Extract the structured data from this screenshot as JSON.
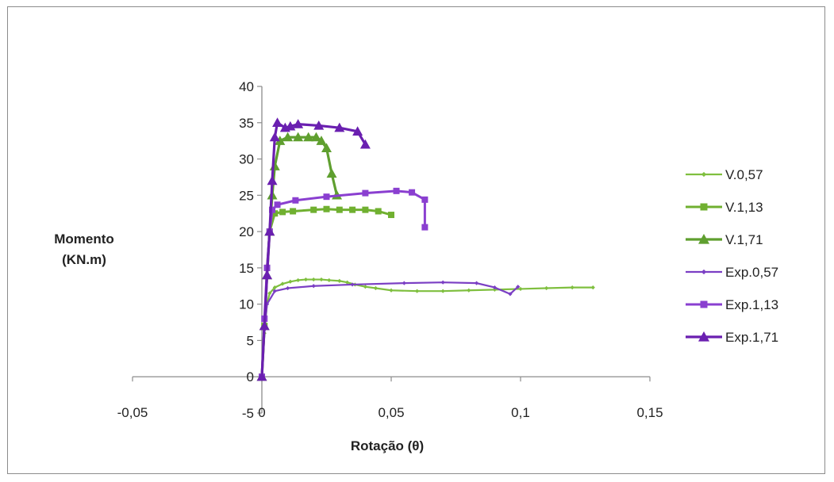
{
  "chart_data": {
    "type": "line",
    "title": "",
    "xlabel": "Rotação (θ)",
    "ylabel_lines": [
      "Momento",
      "(KN.m)"
    ],
    "xlim": [
      -0.05,
      0.15
    ],
    "ylim": [
      -5,
      40
    ],
    "x_ticks": [
      -0.05,
      0,
      0.05,
      0.1,
      0.15
    ],
    "x_tick_labels": [
      "-0,05",
      "0",
      "0,05",
      "0,1",
      "0,15"
    ],
    "y_ticks": [
      -5,
      0,
      5,
      10,
      15,
      20,
      25,
      30,
      35,
      40
    ],
    "y_tick_labels": [
      "-5",
      "0",
      "5",
      "10",
      "15",
      "20",
      "25",
      "30",
      "35",
      "40"
    ],
    "grid": false,
    "legend_position": "right",
    "series": [
      {
        "name": "V.0,57",
        "color": "#7fbf3f",
        "marker": "diamond",
        "points": [
          [
            0,
            0
          ],
          [
            0.001,
            6
          ],
          [
            0.002,
            10
          ],
          [
            0.003,
            11.5
          ],
          [
            0.005,
            12.3
          ],
          [
            0.008,
            12.8
          ],
          [
            0.011,
            13.1
          ],
          [
            0.014,
            13.3
          ],
          [
            0.017,
            13.4
          ],
          [
            0.02,
            13.4
          ],
          [
            0.023,
            13.4
          ],
          [
            0.026,
            13.3
          ],
          [
            0.03,
            13.2
          ],
          [
            0.033,
            13
          ],
          [
            0.036,
            12.7
          ],
          [
            0.04,
            12.4
          ],
          [
            0.044,
            12.2
          ],
          [
            0.05,
            11.9
          ],
          [
            0.06,
            11.8
          ],
          [
            0.07,
            11.8
          ],
          [
            0.08,
            11.9
          ],
          [
            0.09,
            12
          ],
          [
            0.1,
            12.1
          ],
          [
            0.11,
            12.2
          ],
          [
            0.12,
            12.3
          ],
          [
            0.128,
            12.3
          ]
        ]
      },
      {
        "name": "V.1,13",
        "color": "#70b030",
        "marker": "square",
        "points": [
          [
            0,
            0
          ],
          [
            0.001,
            7
          ],
          [
            0.002,
            15
          ],
          [
            0.003,
            20
          ],
          [
            0.005,
            22.5
          ],
          [
            0.008,
            22.7
          ],
          [
            0.012,
            22.8
          ],
          [
            0.02,
            23
          ],
          [
            0.025,
            23.1
          ],
          [
            0.03,
            23
          ],
          [
            0.035,
            23
          ],
          [
            0.04,
            23
          ],
          [
            0.045,
            22.8
          ],
          [
            0.05,
            22.3
          ]
        ]
      },
      {
        "name": "V.1,71",
        "color": "#5f9f2f",
        "marker": "triangle",
        "points": [
          [
            0,
            0
          ],
          [
            0.001,
            7
          ],
          [
            0.002,
            14
          ],
          [
            0.003,
            20
          ],
          [
            0.004,
            25
          ],
          [
            0.005,
            29
          ],
          [
            0.007,
            32.5
          ],
          [
            0.01,
            33
          ],
          [
            0.014,
            33
          ],
          [
            0.018,
            33
          ],
          [
            0.021,
            33
          ],
          [
            0.023,
            32.5
          ],
          [
            0.025,
            31.5
          ],
          [
            0.027,
            28
          ],
          [
            0.029,
            25
          ]
        ]
      },
      {
        "name": "Exp.0,57",
        "color": "#7b3fc4",
        "marker": "diamond",
        "points": [
          [
            0,
            0
          ],
          [
            0.001,
            6.5
          ],
          [
            0.002,
            10
          ],
          [
            0.005,
            11.8
          ],
          [
            0.01,
            12.2
          ],
          [
            0.02,
            12.5
          ],
          [
            0.035,
            12.7
          ],
          [
            0.055,
            12.9
          ],
          [
            0.07,
            13
          ],
          [
            0.083,
            12.9
          ],
          [
            0.09,
            12.3
          ],
          [
            0.096,
            11.4
          ],
          [
            0.099,
            12.4
          ]
        ]
      },
      {
        "name": "Exp.1,13",
        "color": "#8a3fd0",
        "marker": "square",
        "points": [
          [
            0,
            0
          ],
          [
            0.001,
            8
          ],
          [
            0.002,
            15
          ],
          [
            0.003,
            20
          ],
          [
            0.004,
            23
          ],
          [
            0.006,
            23.7
          ],
          [
            0.013,
            24.3
          ],
          [
            0.025,
            24.8
          ],
          [
            0.04,
            25.3
          ],
          [
            0.052,
            25.6
          ],
          [
            0.058,
            25.4
          ],
          [
            0.063,
            24.4
          ],
          [
            0.063,
            20.6
          ]
        ]
      },
      {
        "name": "Exp.1,71",
        "color": "#6a1fb0",
        "marker": "triangle",
        "points": [
          [
            0,
            0
          ],
          [
            0.001,
            7
          ],
          [
            0.002,
            14
          ],
          [
            0.003,
            20
          ],
          [
            0.004,
            27
          ],
          [
            0.005,
            33
          ],
          [
            0.006,
            35
          ],
          [
            0.009,
            34.3
          ],
          [
            0.011,
            34.5
          ],
          [
            0.014,
            34.8
          ],
          [
            0.022,
            34.6
          ],
          [
            0.03,
            34.3
          ],
          [
            0.037,
            33.8
          ],
          [
            0.04,
            32
          ]
        ]
      }
    ]
  }
}
